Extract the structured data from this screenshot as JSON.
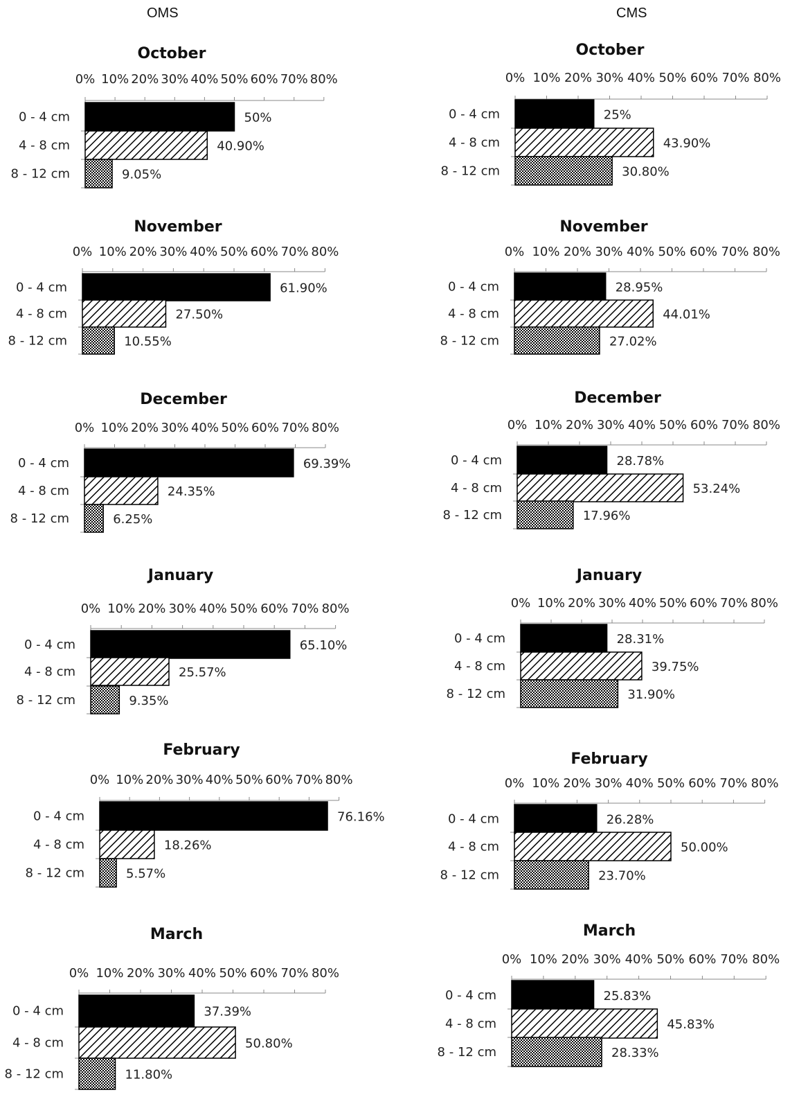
{
  "columns": [
    "OMS",
    "CMS"
  ],
  "colors": {
    "solid": "#000000",
    "background": "#ffffff"
  },
  "pattern_names": [
    "solid-black",
    "diagonal-hatch",
    "crosshatch-dots"
  ],
  "chart_data": [
    {
      "type": "bar",
      "orientation": "horizontal",
      "group": "OMS",
      "title": "October",
      "categories": [
        "0 - 4 cm",
        "4 - 8 cm",
        "8 - 12 cm"
      ],
      "values": [
        50,
        40.9,
        9.05
      ],
      "labels": [
        "50%",
        "40.90%",
        "9.05%"
      ],
      "xlim": [
        0,
        80
      ],
      "ticks": [
        "0%",
        "10%",
        "20%",
        "30%",
        "40%",
        "50%",
        "60%",
        "70%",
        "80%"
      ]
    },
    {
      "type": "bar",
      "orientation": "horizontal",
      "group": "CMS",
      "title": "October",
      "categories": [
        "0 - 4 cm",
        "4 - 8 cm",
        "8 - 12 cm"
      ],
      "values": [
        25,
        43.9,
        30.8
      ],
      "labels": [
        "25%",
        "43.90%",
        "30.80%"
      ],
      "xlim": [
        0,
        80
      ],
      "ticks": [
        "0%",
        "10%",
        "20%",
        "30%",
        "40%",
        "50%",
        "60%",
        "70%",
        "80%"
      ]
    },
    {
      "type": "bar",
      "orientation": "horizontal",
      "group": "OMS",
      "title": "November",
      "categories": [
        "0 - 4 cm",
        "4 - 8 cm",
        "8 - 12 cm"
      ],
      "values": [
        61.9,
        27.5,
        10.55
      ],
      "labels": [
        "61.90%",
        "27.50%",
        "10.55%"
      ],
      "xlim": [
        0,
        80
      ],
      "ticks": [
        "0%",
        "10%",
        "20%",
        "30%",
        "40%",
        "50%",
        "60%",
        "70%",
        "80%"
      ]
    },
    {
      "type": "bar",
      "orientation": "horizontal",
      "group": "CMS",
      "title": "November",
      "categories": [
        "0 - 4 cm",
        "4 - 8 cm",
        "8 - 12 cm"
      ],
      "values": [
        28.95,
        44.01,
        27.02
      ],
      "labels": [
        "28.95%",
        "44.01%",
        "27.02%"
      ],
      "xlim": [
        0,
        80
      ],
      "ticks": [
        "0%",
        "10%",
        "20%",
        "30%",
        "40%",
        "50%",
        "60%",
        "70%",
        "80%"
      ]
    },
    {
      "type": "bar",
      "orientation": "horizontal",
      "group": "OMS",
      "title": "December",
      "categories": [
        "0 - 4 cm",
        "4 - 8 cm",
        "8 - 12 cm"
      ],
      "values": [
        69.39,
        24.35,
        6.25
      ],
      "labels": [
        "69.39%",
        "24.35%",
        "6.25%"
      ],
      "xlim": [
        0,
        80
      ],
      "ticks": [
        "0%",
        "10%",
        "20%",
        "30%",
        "40%",
        "50%",
        "60%",
        "70%",
        "80%"
      ]
    },
    {
      "type": "bar",
      "orientation": "horizontal",
      "group": "CMS",
      "title": "December",
      "categories": [
        "0 - 4 cm",
        "4 - 8 cm",
        "8 - 12 cm"
      ],
      "values": [
        28.78,
        53.24,
        17.96
      ],
      "labels": [
        "28.78%",
        "53.24%",
        "17.96%"
      ],
      "xlim": [
        0,
        80
      ],
      "ticks": [
        "0%",
        "10%",
        "20%",
        "30%",
        "40%",
        "50%",
        "60%",
        "70%",
        "80%"
      ]
    },
    {
      "type": "bar",
      "orientation": "horizontal",
      "group": "OMS",
      "title": "January",
      "categories": [
        "0 - 4 cm",
        "4 - 8 cm",
        "8 - 12 cm"
      ],
      "values": [
        65.1,
        25.57,
        9.35
      ],
      "labels": [
        "65.10%",
        "25.57%",
        "9.35%"
      ],
      "xlim": [
        0,
        80
      ],
      "ticks": [
        "0%",
        "10%",
        "20%",
        "30%",
        "40%",
        "50%",
        "60%",
        "70%",
        "80%"
      ]
    },
    {
      "type": "bar",
      "orientation": "horizontal",
      "group": "CMS",
      "title": "January",
      "categories": [
        "0 - 4 cm",
        "4 - 8 cm",
        "8 - 12 cm"
      ],
      "values": [
        28.31,
        39.75,
        31.9
      ],
      "labels": [
        "28.31%",
        "39.75%",
        "31.90%"
      ],
      "xlim": [
        0,
        80
      ],
      "ticks": [
        "0%",
        "10%",
        "20%",
        "30%",
        "40%",
        "50%",
        "60%",
        "70%",
        "80%"
      ]
    },
    {
      "type": "bar",
      "orientation": "horizontal",
      "group": "OMS",
      "title": "February",
      "categories": [
        "0 - 4 cm",
        "4 - 8 cm",
        "8 - 12 cm"
      ],
      "values": [
        76.16,
        18.26,
        5.57
      ],
      "labels": [
        "76.16%",
        "18.26%",
        "5.57%"
      ],
      "xlim": [
        0,
        80
      ],
      "ticks": [
        "0%",
        "10%",
        "20%",
        "30%",
        "40%",
        "50%",
        "60%",
        "70%",
        "80%"
      ]
    },
    {
      "type": "bar",
      "orientation": "horizontal",
      "group": "CMS",
      "title": "February",
      "categories": [
        "0 - 4 cm",
        "4 - 8 cm",
        "8 - 12 cm"
      ],
      "values": [
        26.28,
        50.0,
        23.7
      ],
      "labels": [
        "26.28%",
        "50.00%",
        "23.70%"
      ],
      "xlim": [
        0,
        80
      ],
      "ticks": [
        "0%",
        "10%",
        "20%",
        "30%",
        "40%",
        "50%",
        "60%",
        "70%",
        "80%"
      ]
    },
    {
      "type": "bar",
      "orientation": "horizontal",
      "group": "OMS",
      "title": "March",
      "categories": [
        "0 - 4 cm",
        "4 - 8 cm",
        "8 - 12 cm"
      ],
      "values": [
        37.39,
        50.8,
        11.8
      ],
      "labels": [
        "37.39%",
        "50.80%",
        "11.80%"
      ],
      "xlim": [
        0,
        80
      ],
      "ticks": [
        "0%",
        "10%",
        "20%",
        "30%",
        "40%",
        "50%",
        "60%",
        "70%",
        "80%"
      ]
    },
    {
      "type": "bar",
      "orientation": "horizontal",
      "group": "CMS",
      "title": "March",
      "categories": [
        "0 - 4 cm",
        "4 - 8 cm",
        "8 - 12 cm"
      ],
      "values": [
        25.83,
        45.83,
        28.33
      ],
      "labels": [
        "25.83%",
        "45.83%",
        "28.33%"
      ],
      "xlim": [
        0,
        80
      ],
      "ticks": [
        "0%",
        "10%",
        "20%",
        "30%",
        "40%",
        "50%",
        "60%",
        "70%",
        "80%"
      ]
    }
  ]
}
